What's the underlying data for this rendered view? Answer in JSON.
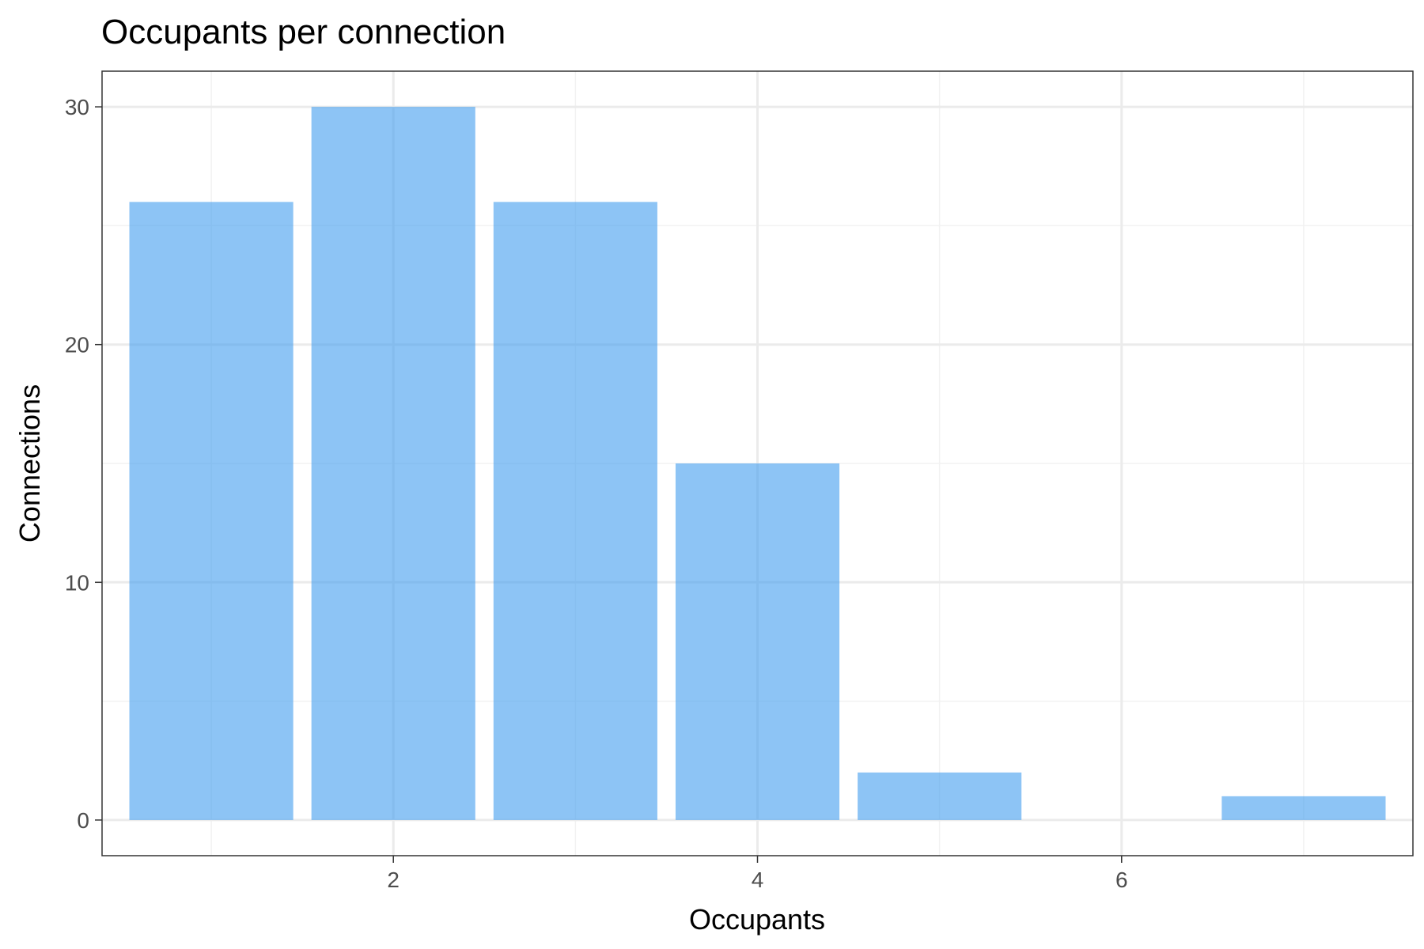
{
  "chart_data": {
    "type": "bar",
    "title": "Occupants per connection",
    "xlabel": "Occupants",
    "ylabel": "Connections",
    "x": [
      1,
      2,
      3,
      4,
      5,
      7
    ],
    "values": [
      26,
      30,
      26,
      15,
      2,
      1
    ],
    "xlim": [
      0.4,
      7.6
    ],
    "ylim": [
      -1.5,
      31.5
    ],
    "x_ticks": [
      2,
      4,
      6
    ],
    "x_tick_labels": [
      "2",
      "4",
      "6"
    ],
    "y_ticks": [
      0,
      10,
      20,
      30
    ],
    "y_tick_labels": [
      "0",
      "10",
      "20",
      "30"
    ],
    "grid": true,
    "bar_color": "#419CEF"
  }
}
